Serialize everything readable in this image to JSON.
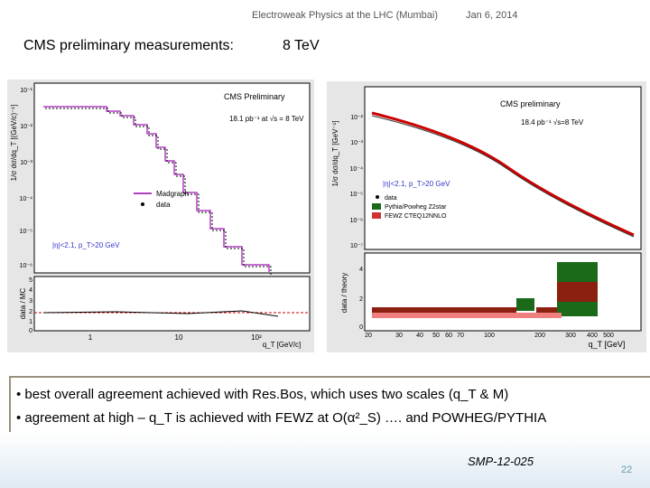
{
  "header": {
    "title": "Electroweak Physics at the LHC (Mumbai)",
    "date": "Jan 6, 2014"
  },
  "subtitle": {
    "label": "CMS preliminary measurements:",
    "energy": "8 TeV"
  },
  "left_plot": {
    "title": "CMS Preliminary",
    "lumi": "18.1 pb⁻¹ at √s = 8 TeV",
    "y_label": "1/σ dσ/dq_T [(GeV/c)⁻¹]",
    "ratio_label": "data / MC",
    "x_label": "q_T [GeV/c]",
    "cut": "|η|<2.1, p_T>20 GeV",
    "legend": [
      "Madgraph",
      "data"
    ],
    "yticks": [
      "10⁻¹",
      "10⁻²",
      "10⁻³",
      "10⁻⁴",
      "10⁻⁵",
      "10⁻⁶"
    ],
    "ratio_ticks": [
      "5",
      "4",
      "3",
      "2",
      "1",
      "0"
    ],
    "xticks": [
      "1",
      "10",
      "10²"
    ]
  },
  "right_plot": {
    "title": "CMS preliminary",
    "lumi": "18.4 pb⁻¹ √s=8 TeV",
    "y_label": "1/σ dσ/dq_T [GeV⁻¹]",
    "ratio_label": "data / theory",
    "x_label": "q_T [GeV]",
    "cut": "|η|<2.1, p_T>20 GeV",
    "legend": [
      "data",
      "Pythia/Powheg Z2star",
      "FEWZ CTEQ12NNLO"
    ],
    "yticks": [
      "10⁻²",
      "10⁻³",
      "10⁻⁴",
      "10⁻⁵",
      "10⁻⁶",
      "10⁻⁷"
    ],
    "ratio_ticks": [
      "4",
      "2",
      "0"
    ],
    "xticks": [
      "20",
      "30",
      "40",
      "50",
      "60",
      "70",
      "100",
      "200",
      "300",
      "400",
      "500"
    ]
  },
  "bullets": [
    "best overall agreement achieved with Res.Bos, which uses two scales (q_T & M)",
    "agreement at high – q_T is achieved with FEWZ at  O(α²_S)  ….  and POWHEG/PYTHIA"
  ],
  "footer": {
    "reference": "SMP-12-025",
    "page": "22"
  }
}
